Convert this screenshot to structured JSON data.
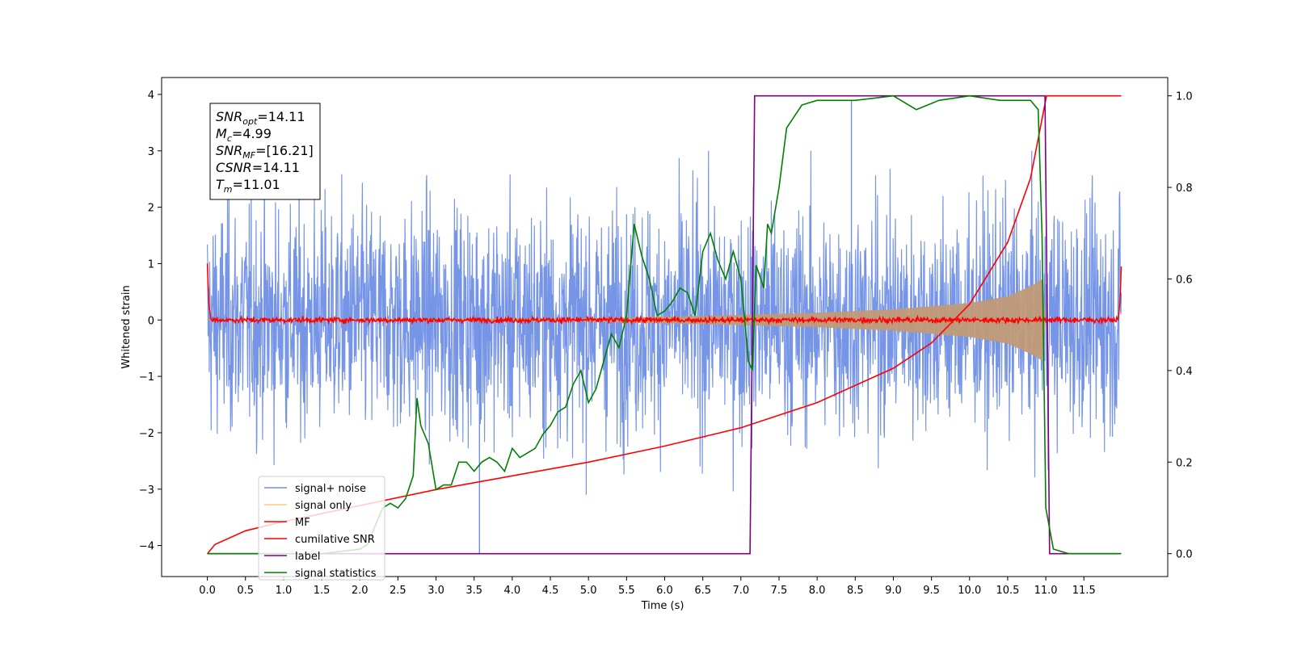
{
  "chart_data": {
    "type": "line",
    "title": "",
    "xlabel": "Time (s)",
    "ylabel": "Whitened strain",
    "xlim": [
      -0.6,
      12.6
    ],
    "ylim": [
      -4.55,
      4.3
    ],
    "y2lim": [
      -0.05,
      1.04
    ],
    "x_ticks": [
      0.0,
      0.5,
      1.0,
      1.5,
      2.0,
      2.5,
      3.0,
      3.5,
      4.0,
      4.5,
      5.0,
      5.5,
      6.0,
      6.5,
      7.0,
      7.5,
      8.0,
      8.5,
      9.0,
      9.5,
      10.0,
      10.5,
      11.0,
      11.5
    ],
    "x_tick_labels": [
      "0.0",
      "0.5",
      "1.0",
      "1.5",
      "2.0",
      "2.5",
      "3.0",
      "3.5",
      "4.0",
      "4.5",
      "5.0",
      "5.5",
      "6.0",
      "6.5",
      "7.0",
      "7.5",
      "8.0",
      "8.5",
      "9.0",
      "9.5",
      "10.0",
      "10.5",
      "11.0",
      "11.5"
    ],
    "y_ticks": [
      -4,
      -3,
      -2,
      -1,
      0,
      1,
      2,
      3,
      4
    ],
    "y_tick_labels": [
      "−4",
      "−3",
      "−2",
      "−1",
      "0",
      "1",
      "2",
      "3",
      "4"
    ],
    "y2_ticks": [
      0.0,
      0.2,
      0.4,
      0.6,
      0.8,
      1.0
    ],
    "y2_tick_labels": [
      "0.0",
      "0.2",
      "0.4",
      "0.6",
      "0.8",
      "1.0"
    ],
    "grid": false,
    "legend_position": "lower-left",
    "colors": {
      "signal_noise": "#6f8fe6",
      "signal_only": "#ffc87a",
      "signal_only_fill": "#c19a78",
      "mf": "#ff0000",
      "cumulative_snr": "#ff0000",
      "label": "#800080",
      "signal_statistics": "#008000"
    },
    "series": [
      {
        "name": "signal+ noise",
        "axis": "left",
        "description": "broadband noise, amplitude envelope about ±2.5 with spikes near ±3",
        "envelope": {
          "x": [
            0.0,
            11.99
          ],
          "upper": [
            2.5,
            2.5
          ],
          "lower": [
            -2.5,
            -2.5
          ]
        },
        "spikes": [
          {
            "x": 3.57,
            "y": -4.15
          },
          {
            "x": 8.45,
            "y": 3.9
          }
        ]
      },
      {
        "name": "signal only",
        "axis": "left",
        "envelope": {
          "x": [
            0.0,
            5.0,
            6.0,
            7.0,
            8.0,
            9.0,
            10.0,
            10.5,
            10.8,
            10.95,
            11.0
          ],
          "upper": [
            0.01,
            0.03,
            0.06,
            0.09,
            0.13,
            0.19,
            0.3,
            0.42,
            0.6,
            0.72,
            0.0
          ],
          "lower": [
            -0.01,
            -0.03,
            -0.06,
            -0.09,
            -0.13,
            -0.19,
            -0.3,
            -0.42,
            -0.6,
            -0.72,
            0.0
          ]
        }
      },
      {
        "name": "MF",
        "axis": "left",
        "x": [
          0.0,
          0.02,
          0.05,
          11.94,
          11.97,
          11.99
        ],
        "y": [
          1.0,
          0.3,
          0.05,
          0.05,
          0.25,
          0.95
        ],
        "noise_band": 0.1
      },
      {
        "name": "cumilative SNR",
        "axis": "right",
        "x": [
          0.0,
          0.1,
          0.5,
          1.0,
          2.0,
          3.0,
          4.0,
          5.0,
          6.0,
          7.0,
          8.0,
          9.0,
          9.5,
          10.0,
          10.5,
          10.8,
          11.01,
          11.99
        ],
        "y": [
          0.0,
          0.02,
          0.05,
          0.07,
          0.105,
          0.14,
          0.17,
          0.2,
          0.235,
          0.275,
          0.33,
          0.405,
          0.46,
          0.545,
          0.68,
          0.82,
          1.0,
          1.0
        ]
      },
      {
        "name": "label",
        "axis": "right",
        "x": [
          0.0,
          7.12,
          7.18,
          10.99,
          11.05,
          11.99
        ],
        "y": [
          0.0,
          0.0,
          1.0,
          1.0,
          0.0,
          0.0
        ]
      },
      {
        "name": "signal statistics",
        "axis": "right",
        "x": [
          0.0,
          1.5,
          2.0,
          2.1,
          2.2,
          2.3,
          2.4,
          2.5,
          2.6,
          2.7,
          2.75,
          2.8,
          2.9,
          3.0,
          3.1,
          3.2,
          3.3,
          3.4,
          3.5,
          3.6,
          3.7,
          3.8,
          3.9,
          4.0,
          4.1,
          4.2,
          4.3,
          4.4,
          4.5,
          4.6,
          4.7,
          4.8,
          4.9,
          5.0,
          5.1,
          5.2,
          5.3,
          5.4,
          5.5,
          5.6,
          5.7,
          5.8,
          5.9,
          6.0,
          6.1,
          6.2,
          6.3,
          6.4,
          6.5,
          6.6,
          6.7,
          6.8,
          6.9,
          7.0,
          7.1,
          7.15,
          7.2,
          7.3,
          7.35,
          7.4,
          7.5,
          7.6,
          7.8,
          8.0,
          8.5,
          9.0,
          9.3,
          9.6,
          10.0,
          10.4,
          10.8,
          10.9,
          10.95,
          11.0,
          11.1,
          11.3,
          11.99
        ],
        "y": [
          0.0,
          0.0,
          0.01,
          0.02,
          0.06,
          0.1,
          0.11,
          0.1,
          0.12,
          0.17,
          0.34,
          0.28,
          0.24,
          0.14,
          0.15,
          0.15,
          0.2,
          0.2,
          0.18,
          0.2,
          0.21,
          0.2,
          0.18,
          0.23,
          0.21,
          0.22,
          0.23,
          0.26,
          0.28,
          0.31,
          0.32,
          0.37,
          0.4,
          0.33,
          0.36,
          0.42,
          0.48,
          0.45,
          0.52,
          0.72,
          0.65,
          0.6,
          0.52,
          0.53,
          0.55,
          0.58,
          0.57,
          0.52,
          0.66,
          0.7,
          0.64,
          0.6,
          0.66,
          0.6,
          0.42,
          0.4,
          0.63,
          0.58,
          0.72,
          0.7,
          0.8,
          0.93,
          0.98,
          0.99,
          0.99,
          1.0,
          0.97,
          0.99,
          1.0,
          0.99,
          0.99,
          0.97,
          0.7,
          0.1,
          0.01,
          0.0,
          0.0
        ]
      }
    ],
    "legend": [
      "signal+ noise",
      "signal only",
      "MF",
      "cumilative SNR",
      "label",
      "signal statistics"
    ],
    "annotation_box": [
      {
        "sym": "SNR",
        "sub": "opt",
        "val": "=14.11"
      },
      {
        "sym": "M",
        "sub": "c",
        "val": "=4.99"
      },
      {
        "sym": "SNR",
        "sub": "MF",
        "val": "=[16.21]"
      },
      {
        "sym": "CSNR",
        "sub": "",
        "val": "=14.11"
      },
      {
        "sym": "T",
        "sub": "m",
        "val": "=11.01"
      }
    ]
  }
}
